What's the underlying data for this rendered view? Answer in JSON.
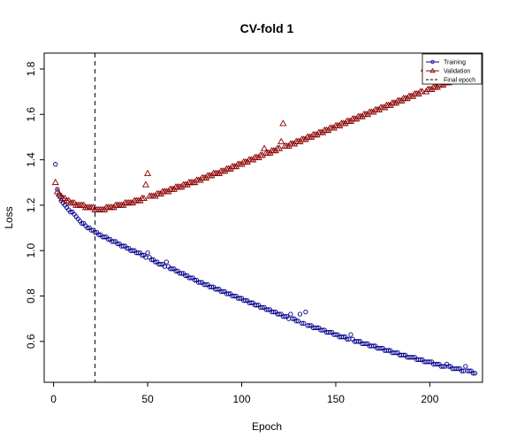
{
  "chart_data": {
    "type": "scatter",
    "title": "CV-fold 1",
    "xlabel": "Epoch",
    "ylabel": "Loss",
    "xlim": [
      -5,
      228
    ],
    "ylim": [
      0.42,
      1.87
    ],
    "x_ticks": [
      0,
      50,
      100,
      150,
      200
    ],
    "x_tick_labels": [
      "0",
      "50",
      "100",
      "150",
      "200"
    ],
    "y_ticks": [
      0.6,
      0.8,
      1.0,
      1.2,
      1.4,
      1.6,
      1.8
    ],
    "y_tick_labels": [
      "0.6",
      "0.8",
      "1.0",
      "1.2",
      "1.4",
      "1.6",
      "1.8"
    ],
    "final_epoch": 22,
    "legend_position": "top-right",
    "legend": [
      {
        "label": "Training",
        "marker": "circle",
        "color": "#00008b"
      },
      {
        "label": "Validation",
        "marker": "triangle",
        "color": "#8b0000"
      },
      {
        "label": "Final epoch",
        "marker": "dashed-line",
        "color": "#000000"
      }
    ],
    "series": [
      {
        "name": "Training",
        "color": "#00008b",
        "marker": "circle",
        "x_start": 1,
        "values": [
          1.38,
          1.27,
          1.24,
          1.22,
          1.21,
          1.2,
          1.19,
          1.18,
          1.17,
          1.17,
          1.16,
          1.15,
          1.14,
          1.13,
          1.12,
          1.12,
          1.11,
          1.1,
          1.1,
          1.09,
          1.09,
          1.08,
          1.08,
          1.07,
          1.07,
          1.06,
          1.06,
          1.06,
          1.05,
          1.05,
          1.04,
          1.04,
          1.04,
          1.03,
          1.03,
          1.02,
          1.02,
          1.02,
          1.01,
          1.01,
          1.0,
          1.0,
          1.0,
          0.99,
          0.99,
          0.99,
          0.98,
          0.98,
          0.97,
          0.99,
          0.97,
          0.96,
          0.96,
          0.95,
          0.95,
          0.94,
          0.94,
          0.94,
          0.93,
          0.95,
          0.93,
          0.92,
          0.92,
          0.92,
          0.91,
          0.91,
          0.9,
          0.9,
          0.9,
          0.89,
          0.89,
          0.88,
          0.88,
          0.88,
          0.87,
          0.87,
          0.86,
          0.86,
          0.86,
          0.85,
          0.85,
          0.85,
          0.84,
          0.84,
          0.84,
          0.83,
          0.83,
          0.83,
          0.82,
          0.82,
          0.82,
          0.81,
          0.81,
          0.81,
          0.8,
          0.8,
          0.8,
          0.79,
          0.79,
          0.79,
          0.78,
          0.78,
          0.78,
          0.77,
          0.77,
          0.77,
          0.76,
          0.76,
          0.76,
          0.75,
          0.75,
          0.75,
          0.74,
          0.74,
          0.74,
          0.73,
          0.73,
          0.73,
          0.72,
          0.72,
          0.72,
          0.71,
          0.71,
          0.71,
          0.7,
          0.72,
          0.7,
          0.7,
          0.69,
          0.69,
          0.72,
          0.68,
          0.68,
          0.73,
          0.67,
          0.67,
          0.67,
          0.66,
          0.66,
          0.66,
          0.66,
          0.65,
          0.65,
          0.65,
          0.64,
          0.64,
          0.64,
          0.64,
          0.63,
          0.63,
          0.63,
          0.62,
          0.62,
          0.62,
          0.62,
          0.61,
          0.61,
          0.63,
          0.61,
          0.6,
          0.6,
          0.6,
          0.6,
          0.59,
          0.59,
          0.59,
          0.59,
          0.58,
          0.58,
          0.58,
          0.58,
          0.57,
          0.57,
          0.57,
          0.57,
          0.56,
          0.56,
          0.56,
          0.56,
          0.55,
          0.55,
          0.55,
          0.55,
          0.54,
          0.54,
          0.54,
          0.54,
          0.53,
          0.53,
          0.53,
          0.53,
          0.53,
          0.52,
          0.52,
          0.52,
          0.52,
          0.51,
          0.51,
          0.51,
          0.51,
          0.51,
          0.5,
          0.5,
          0.5,
          0.5,
          0.49,
          0.49,
          0.49,
          0.5,
          0.49,
          0.49,
          0.48,
          0.48,
          0.48,
          0.48,
          0.48,
          0.47,
          0.47,
          0.49,
          0.47,
          0.47,
          0.47,
          0.46,
          0.46
        ]
      },
      {
        "name": "Validation",
        "color": "#8b0000",
        "marker": "triangle",
        "x_start": 1,
        "values": [
          1.3,
          1.26,
          1.25,
          1.24,
          1.23,
          1.23,
          1.22,
          1.22,
          1.21,
          1.21,
          1.21,
          1.2,
          1.2,
          1.2,
          1.2,
          1.2,
          1.19,
          1.19,
          1.19,
          1.19,
          1.19,
          1.18,
          1.18,
          1.18,
          1.18,
          1.18,
          1.18,
          1.19,
          1.19,
          1.19,
          1.19,
          1.19,
          1.2,
          1.2,
          1.2,
          1.2,
          1.2,
          1.21,
          1.21,
          1.21,
          1.21,
          1.21,
          1.22,
          1.22,
          1.22,
          1.22,
          1.23,
          1.23,
          1.29,
          1.34,
          1.24,
          1.24,
          1.24,
          1.24,
          1.25,
          1.25,
          1.25,
          1.26,
          1.26,
          1.26,
          1.26,
          1.27,
          1.27,
          1.27,
          1.28,
          1.28,
          1.28,
          1.28,
          1.29,
          1.29,
          1.29,
          1.3,
          1.3,
          1.3,
          1.3,
          1.31,
          1.31,
          1.31,
          1.32,
          1.32,
          1.32,
          1.33,
          1.33,
          1.33,
          1.34,
          1.34,
          1.34,
          1.34,
          1.35,
          1.35,
          1.35,
          1.36,
          1.36,
          1.36,
          1.37,
          1.37,
          1.37,
          1.38,
          1.38,
          1.38,
          1.39,
          1.39,
          1.39,
          1.4,
          1.4,
          1.4,
          1.41,
          1.41,
          1.41,
          1.42,
          1.42,
          1.45,
          1.43,
          1.43,
          1.43,
          1.44,
          1.44,
          1.44,
          1.45,
          1.45,
          1.48,
          1.56,
          1.46,
          1.46,
          1.46,
          1.47,
          1.47,
          1.47,
          1.48,
          1.48,
          1.48,
          1.49,
          1.49,
          1.49,
          1.5,
          1.5,
          1.5,
          1.51,
          1.51,
          1.51,
          1.52,
          1.52,
          1.52,
          1.53,
          1.53,
          1.53,
          1.54,
          1.54,
          1.54,
          1.55,
          1.55,
          1.55,
          1.56,
          1.56,
          1.56,
          1.57,
          1.57,
          1.57,
          1.58,
          1.58,
          1.58,
          1.59,
          1.59,
          1.59,
          1.6,
          1.6,
          1.6,
          1.61,
          1.61,
          1.61,
          1.62,
          1.62,
          1.62,
          1.63,
          1.63,
          1.63,
          1.64,
          1.64,
          1.64,
          1.65,
          1.65,
          1.65,
          1.66,
          1.66,
          1.66,
          1.67,
          1.67,
          1.67,
          1.68,
          1.68,
          1.68,
          1.69,
          1.69,
          1.69,
          1.7,
          1.7,
          1.8,
          1.7,
          1.71,
          1.71,
          1.71,
          1.72,
          1.72,
          1.72,
          1.73,
          1.73,
          1.73,
          1.74,
          1.74,
          1.74,
          1.75,
          1.75,
          1.75,
          1.76,
          1.76,
          1.76,
          1.77,
          1.77,
          1.77,
          1.78,
          1.78
        ]
      }
    ]
  }
}
